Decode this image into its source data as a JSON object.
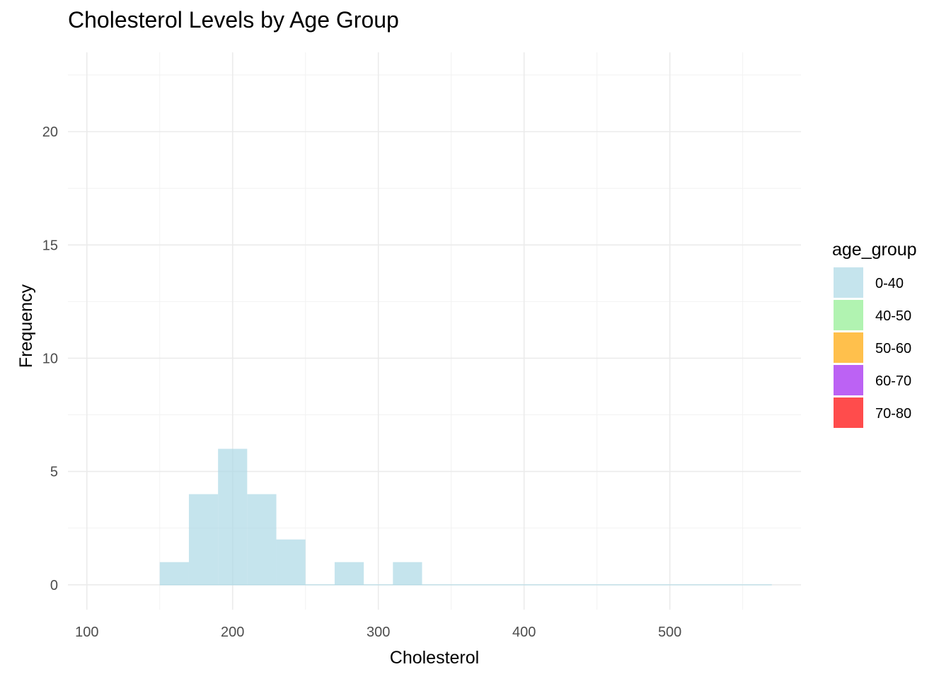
{
  "chart_data": {
    "type": "bar",
    "title": "Cholesterol Levels by Age Group",
    "xlabel": "Cholesterol",
    "ylabel": "Frequency",
    "xlim": [
      87,
      590
    ],
    "ylim": [
      -1.1,
      23.5
    ],
    "x_ticks": [
      100,
      200,
      300,
      400,
      500
    ],
    "y_ticks": [
      0,
      5,
      10,
      15,
      20
    ],
    "grid": true,
    "legend": {
      "title": "age_group",
      "placement": "right",
      "entries": [
        {
          "label": "0-40",
          "color": "#add8e6"
        },
        {
          "label": "40-50",
          "color": "#90ee90"
        },
        {
          "label": "50-60",
          "color": "#ffa500"
        },
        {
          "label": "60-70",
          "color": "#a020f0"
        },
        {
          "label": "70-80",
          "color": "#ff0000"
        }
      ]
    },
    "bin_width": 20,
    "bin_start": 150,
    "bin_end": 570,
    "series": [
      {
        "name": "0-40",
        "color": "#add8e6",
        "bins": [
          {
            "x": [
              150,
              170
            ],
            "count": 1
          },
          {
            "x": [
              170,
              190
            ],
            "count": 4
          },
          {
            "x": [
              190,
              210
            ],
            "count": 6
          },
          {
            "x": [
              210,
              230
            ],
            "count": 4
          },
          {
            "x": [
              230,
              250
            ],
            "count": 2
          },
          {
            "x": [
              270,
              290
            ],
            "count": 1
          },
          {
            "x": [
              310,
              330
            ],
            "count": 1
          }
        ]
      }
    ]
  }
}
